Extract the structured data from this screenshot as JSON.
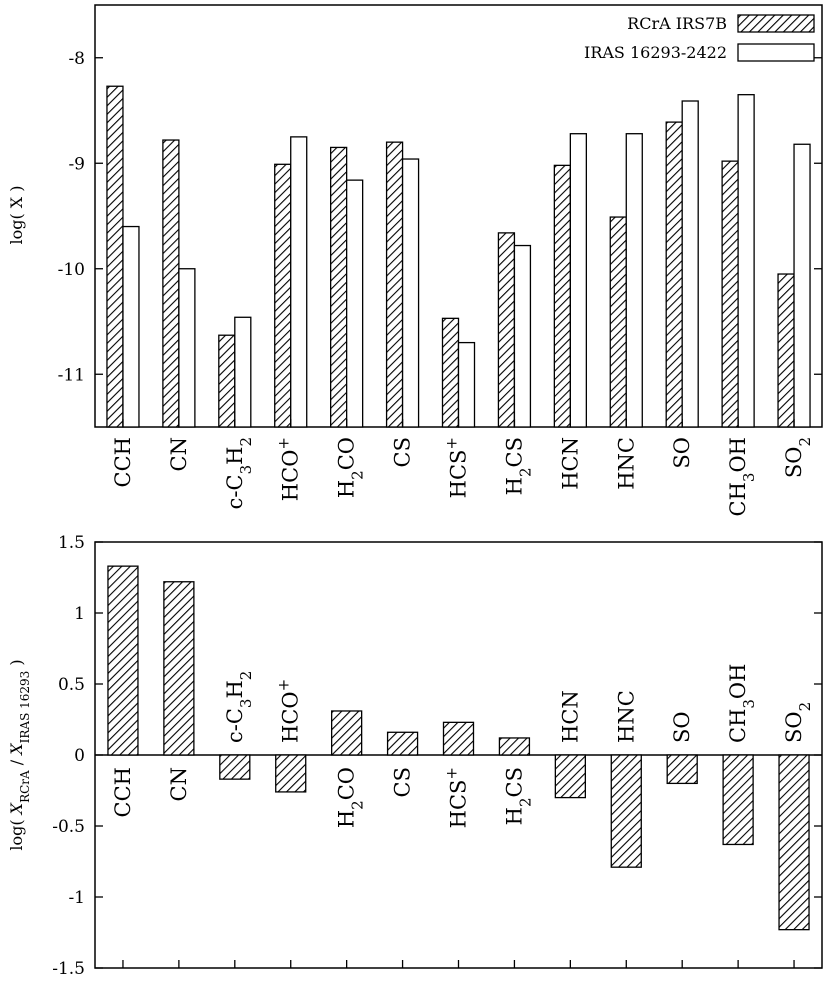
{
  "chart_data": [
    {
      "type": "bar",
      "categories": [
        "CCH",
        "CN",
        "c-C3H2",
        "HCO+",
        "H2CO",
        "CS",
        "HCS+",
        "H2CS",
        "HCN",
        "HNC",
        "SO",
        "CH3OH",
        "SO2"
      ],
      "series": [
        {
          "name": "RCrA IRS7B",
          "values": [
            -8.27,
            -8.78,
            -10.63,
            -9.01,
            -8.85,
            -8.8,
            -10.47,
            -9.66,
            -9.02,
            -9.51,
            -8.61,
            -8.98,
            -10.05
          ]
        },
        {
          "name": "IRAS 16293-2422",
          "values": [
            -9.6,
            -10.0,
            -10.46,
            -8.75,
            -9.16,
            -8.96,
            -10.7,
            -9.78,
            -8.72,
            -8.72,
            -8.41,
            -8.35,
            -8.82
          ]
        }
      ],
      "ylabel": "log( X )",
      "ylim": [
        -11.5,
        -7.5
      ],
      "yticks": [
        -8,
        -9,
        -10,
        -11
      ],
      "legend": "top-right",
      "grid": false
    },
    {
      "type": "bar",
      "categories": [
        "CCH",
        "CN",
        "c-C3H2",
        "HCO+",
        "H2CO",
        "CS",
        "HCS+",
        "H2CS",
        "HCN",
        "HNC",
        "SO",
        "CH3OH",
        "SO2"
      ],
      "values": [
        1.33,
        1.22,
        -0.17,
        -0.26,
        0.31,
        0.16,
        0.23,
        0.12,
        -0.3,
        -0.79,
        -0.2,
        -0.63,
        -1.23
      ],
      "ylabel": "log( X RCrA / X IRAS 16293 )",
      "ylim": [
        -1.5,
        1.5
      ],
      "yticks": [
        1.5,
        1,
        0.5,
        0,
        -0.5,
        -1,
        -1.5
      ],
      "grid": false
    }
  ]
}
